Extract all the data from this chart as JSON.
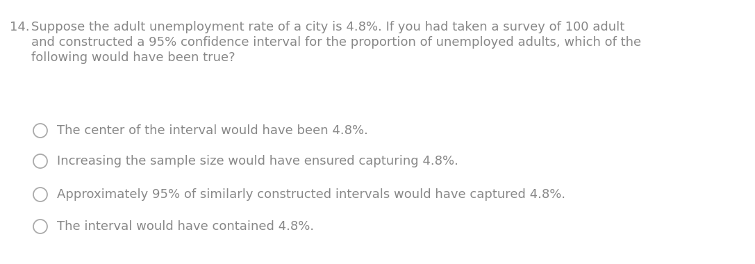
{
  "background_color": "#ffffff",
  "question_number": "14.",
  "question_text_line1": "Suppose the adult unemployment rate of a city is 4.8%. If you had taken a survey of 100 adult",
  "question_text_line2": "and constructed a 95% confidence interval for the proportion of unemployed adults, which of the",
  "question_text_line3": "following would have been true?",
  "options": [
    "The center of the interval would have been 4.8%.",
    "Increasing the sample size would have ensured capturing 4.8%.",
    "Approximately 95% of similarly constructed intervals would have captured 4.8%.",
    "The interval would have contained 4.8%."
  ],
  "font_size_question": 13.0,
  "font_size_options": 13.0,
  "text_color": "#888888",
  "circle_edge_color": "#aaaaaa",
  "fig_width": 10.87,
  "fig_height": 3.8,
  "dpi": 100
}
